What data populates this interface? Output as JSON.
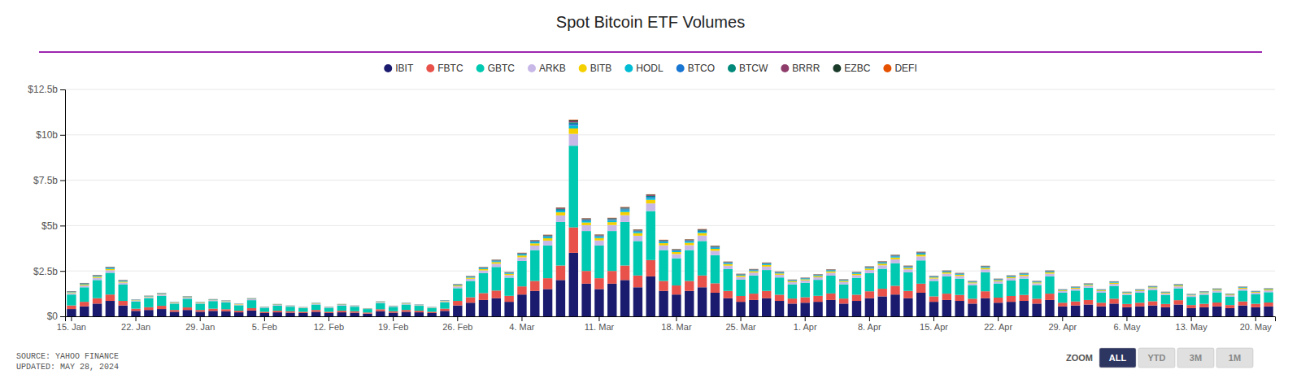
{
  "chart_data": {
    "type": "bar",
    "stacked": true,
    "grid": true,
    "legend": "top",
    "title": "Spot Bitcoin ETF Volumes",
    "annotations": [
      "SOURCE: YAHOO FINANCE",
      "UPDATED: MAY 28, 2024",
      "ZOOM",
      "ALL",
      "YTD",
      "3M",
      "1M"
    ],
    "categories": [
      "15. Jan",
      null,
      null,
      null,
      null,
      "22. Jan",
      null,
      null,
      null,
      null,
      "29. Jan",
      null,
      null,
      null,
      null,
      "5. Feb",
      null,
      null,
      null,
      null,
      "12. Feb",
      null,
      null,
      null,
      null,
      "19. Feb",
      null,
      null,
      null,
      null,
      "26. Feb",
      null,
      null,
      null,
      null,
      "4. Mar",
      null,
      null,
      null,
      null,
      null,
      "11. Mar",
      null,
      null,
      null,
      null,
      null,
      "18. Mar",
      null,
      null,
      null,
      null,
      "25. Mar",
      null,
      null,
      null,
      null,
      "1. Apr",
      null,
      null,
      null,
      null,
      "8. Apr",
      null,
      null,
      null,
      null,
      "15. Apr",
      null,
      null,
      null,
      null,
      "22. Apr",
      null,
      null,
      null,
      null,
      "29. Apr",
      null,
      null,
      null,
      null,
      "6. May",
      null,
      null,
      null,
      null,
      "13. May",
      null,
      null,
      null,
      null,
      "20. May",
      null
    ],
    "ylim": [
      0,
      12.5
    ],
    "yticks": [
      {
        "value": 0,
        "label": "$0"
      },
      {
        "value": 2.5,
        "label": "$2.5b"
      },
      {
        "value": 5.0,
        "label": "$5b"
      },
      {
        "value": 7.5,
        "label": "$7.5b"
      },
      {
        "value": 10.0,
        "label": "$10b"
      },
      {
        "value": 12.5,
        "label": "$12.5b"
      }
    ],
    "series": [
      {
        "name": "IBIT",
        "color": "#1a1a6e",
        "values": [
          0.4,
          0.55,
          0.7,
          0.85,
          0.6,
          0.3,
          0.35,
          0.4,
          0.25,
          0.35,
          0.25,
          0.3,
          0.28,
          0.22,
          0.32,
          0.18,
          0.22,
          0.2,
          0.18,
          0.25,
          0.18,
          0.22,
          0.2,
          0.15,
          0.28,
          0.2,
          0.25,
          0.22,
          0.18,
          0.3,
          0.6,
          0.75,
          0.9,
          1.0,
          0.8,
          1.2,
          1.4,
          1.5,
          2.0,
          3.5,
          1.8,
          1.5,
          1.8,
          2.0,
          1.6,
          2.2,
          1.4,
          1.2,
          1.4,
          1.6,
          1.3,
          1.0,
          0.8,
          0.9,
          1.0,
          0.85,
          0.7,
          0.75,
          0.8,
          0.9,
          0.7,
          0.85,
          1.0,
          1.1,
          1.2,
          1.0,
          1.3,
          0.8,
          0.9,
          0.85,
          0.7,
          1.0,
          0.75,
          0.8,
          0.85,
          0.7,
          0.9,
          0.55,
          0.6,
          0.65,
          0.55,
          0.7,
          0.5,
          0.55,
          0.6,
          0.5,
          0.65,
          0.45,
          0.5,
          0.55,
          0.45,
          0.6,
          0.5,
          0.55
        ]
      },
      {
        "name": "FBTC",
        "color": "#e8524a",
        "values": [
          0.2,
          0.25,
          0.3,
          0.35,
          0.25,
          0.12,
          0.15,
          0.18,
          0.1,
          0.14,
          0.1,
          0.12,
          0.11,
          0.09,
          0.13,
          0.07,
          0.09,
          0.08,
          0.07,
          0.1,
          0.07,
          0.09,
          0.08,
          0.06,
          0.11,
          0.08,
          0.1,
          0.09,
          0.07,
          0.12,
          0.25,
          0.3,
          0.38,
          0.42,
          0.33,
          0.45,
          0.55,
          0.6,
          0.8,
          1.4,
          0.7,
          0.6,
          0.7,
          0.8,
          0.65,
          0.9,
          0.55,
          0.5,
          0.55,
          0.65,
          0.52,
          0.4,
          0.32,
          0.35,
          0.4,
          0.34,
          0.28,
          0.3,
          0.33,
          0.36,
          0.28,
          0.34,
          0.38,
          0.42,
          0.48,
          0.4,
          0.5,
          0.3,
          0.35,
          0.33,
          0.27,
          0.38,
          0.28,
          0.32,
          0.33,
          0.27,
          0.35,
          0.2,
          0.22,
          0.25,
          0.2,
          0.27,
          0.18,
          0.2,
          0.23,
          0.18,
          0.24,
          0.17,
          0.19,
          0.21,
          0.17,
          0.22,
          0.19,
          0.21
        ]
      },
      {
        "name": "GBTC",
        "color": "#00c9b1",
        "values": [
          0.6,
          0.8,
          1.0,
          1.2,
          0.9,
          0.4,
          0.5,
          0.55,
          0.35,
          0.48,
          0.35,
          0.42,
          0.38,
          0.3,
          0.44,
          0.22,
          0.28,
          0.25,
          0.2,
          0.3,
          0.22,
          0.28,
          0.25,
          0.19,
          0.34,
          0.24,
          0.3,
          0.27,
          0.21,
          0.36,
          0.7,
          0.9,
          1.1,
          1.3,
          1.0,
          1.4,
          1.7,
          1.8,
          2.4,
          4.5,
          2.2,
          1.8,
          2.2,
          2.4,
          1.9,
          2.7,
          1.7,
          1.5,
          1.7,
          1.9,
          1.55,
          1.2,
          0.9,
          1.0,
          1.15,
          0.95,
          0.78,
          0.8,
          0.88,
          0.98,
          0.78,
          0.93,
          1.0,
          1.1,
          1.25,
          1.02,
          1.28,
          0.85,
          0.95,
          0.9,
          0.74,
          1.05,
          0.78,
          0.85,
          0.9,
          0.74,
          0.95,
          0.55,
          0.6,
          0.68,
          0.55,
          0.7,
          0.5,
          0.55,
          0.62,
          0.5,
          0.65,
          0.45,
          0.5,
          0.56,
          0.46,
          0.6,
          0.52,
          0.57
        ]
      },
      {
        "name": "ARKB",
        "color": "#c8b8e8",
        "values": [
          0.08,
          0.1,
          0.12,
          0.14,
          0.11,
          0.05,
          0.06,
          0.07,
          0.04,
          0.06,
          0.04,
          0.05,
          0.05,
          0.04,
          0.05,
          0.03,
          0.04,
          0.03,
          0.03,
          0.04,
          0.03,
          0.04,
          0.03,
          0.02,
          0.04,
          0.03,
          0.04,
          0.03,
          0.02,
          0.05,
          0.1,
          0.12,
          0.15,
          0.18,
          0.14,
          0.2,
          0.25,
          0.27,
          0.36,
          0.65,
          0.32,
          0.28,
          0.33,
          0.37,
          0.29,
          0.42,
          0.26,
          0.23,
          0.27,
          0.3,
          0.24,
          0.19,
          0.15,
          0.16,
          0.19,
          0.15,
          0.12,
          0.13,
          0.14,
          0.16,
          0.13,
          0.15,
          0.17,
          0.19,
          0.21,
          0.17,
          0.22,
          0.13,
          0.15,
          0.14,
          0.11,
          0.16,
          0.12,
          0.13,
          0.14,
          0.11,
          0.15,
          0.09,
          0.1,
          0.11,
          0.09,
          0.12,
          0.08,
          0.09,
          0.1,
          0.08,
          0.11,
          0.08,
          0.09,
          0.1,
          0.08,
          0.1,
          0.09,
          0.1
        ]
      },
      {
        "name": "BITB",
        "color": "#f5d000",
        "values": [
          0.04,
          0.05,
          0.06,
          0.07,
          0.05,
          0.02,
          0.03,
          0.03,
          0.02,
          0.03,
          0.02,
          0.02,
          0.02,
          0.02,
          0.02,
          0.01,
          0.02,
          0.01,
          0.01,
          0.02,
          0.01,
          0.02,
          0.01,
          0.01,
          0.02,
          0.01,
          0.02,
          0.01,
          0.01,
          0.02,
          0.05,
          0.06,
          0.07,
          0.09,
          0.07,
          0.1,
          0.12,
          0.13,
          0.17,
          0.3,
          0.15,
          0.13,
          0.16,
          0.18,
          0.14,
          0.2,
          0.12,
          0.11,
          0.13,
          0.14,
          0.11,
          0.09,
          0.07,
          0.08,
          0.09,
          0.07,
          0.06,
          0.06,
          0.07,
          0.08,
          0.06,
          0.07,
          0.08,
          0.09,
          0.1,
          0.08,
          0.1,
          0.06,
          0.07,
          0.07,
          0.05,
          0.08,
          0.06,
          0.06,
          0.07,
          0.05,
          0.07,
          0.04,
          0.05,
          0.05,
          0.04,
          0.06,
          0.04,
          0.04,
          0.05,
          0.04,
          0.05,
          0.03,
          0.04,
          0.05,
          0.04,
          0.05,
          0.04,
          0.05
        ]
      },
      {
        "name": "HODL",
        "color": "#00bcd4",
        "values": [
          0.02,
          0.03,
          0.03,
          0.04,
          0.03,
          0.01,
          0.015,
          0.015,
          0.01,
          0.015,
          0.01,
          0.012,
          0.011,
          0.009,
          0.012,
          0.008,
          0.01,
          0.009,
          0.007,
          0.01,
          0.008,
          0.01,
          0.009,
          0.007,
          0.011,
          0.009,
          0.011,
          0.01,
          0.008,
          0.013,
          0.025,
          0.03,
          0.038,
          0.042,
          0.033,
          0.05,
          0.06,
          0.065,
          0.09,
          0.16,
          0.08,
          0.065,
          0.08,
          0.09,
          0.07,
          0.1,
          0.06,
          0.055,
          0.065,
          0.07,
          0.057,
          0.044,
          0.034,
          0.038,
          0.044,
          0.035,
          0.028,
          0.03,
          0.033,
          0.037,
          0.03,
          0.036,
          0.04,
          0.044,
          0.05,
          0.04,
          0.052,
          0.03,
          0.035,
          0.033,
          0.026,
          0.038,
          0.028,
          0.032,
          0.033,
          0.027,
          0.035,
          0.02,
          0.022,
          0.025,
          0.02,
          0.027,
          0.018,
          0.02,
          0.023,
          0.018,
          0.024,
          0.017,
          0.019,
          0.021,
          0.017,
          0.022,
          0.019,
          0.021
        ]
      },
      {
        "name": "BTCO",
        "color": "#1976d2",
        "values": [
          0.015,
          0.018,
          0.022,
          0.025,
          0.02,
          0.008,
          0.01,
          0.011,
          0.007,
          0.009,
          0.007,
          0.008,
          0.007,
          0.006,
          0.008,
          0.005,
          0.006,
          0.005,
          0.004,
          0.006,
          0.005,
          0.006,
          0.005,
          0.004,
          0.007,
          0.005,
          0.007,
          0.006,
          0.005,
          0.008,
          0.016,
          0.02,
          0.025,
          0.028,
          0.022,
          0.032,
          0.038,
          0.041,
          0.055,
          0.1,
          0.05,
          0.042,
          0.05,
          0.057,
          0.044,
          0.064,
          0.04,
          0.035,
          0.041,
          0.046,
          0.037,
          0.029,
          0.022,
          0.025,
          0.028,
          0.023,
          0.018,
          0.019,
          0.021,
          0.024,
          0.019,
          0.023,
          0.026,
          0.028,
          0.032,
          0.026,
          0.033,
          0.019,
          0.022,
          0.021,
          0.017,
          0.024,
          0.018,
          0.02,
          0.021,
          0.017,
          0.022,
          0.013,
          0.014,
          0.016,
          0.013,
          0.017,
          0.012,
          0.013,
          0.015,
          0.012,
          0.015,
          0.011,
          0.012,
          0.013,
          0.011,
          0.014,
          0.012,
          0.013
        ]
      },
      {
        "name": "BTCW",
        "color": "#00897b",
        "values": [
          0.012,
          0.014,
          0.017,
          0.02,
          0.015,
          0.006,
          0.008,
          0.009,
          0.005,
          0.007,
          0.005,
          0.007,
          0.006,
          0.005,
          0.007,
          0.004,
          0.005,
          0.004,
          0.003,
          0.005,
          0.004,
          0.005,
          0.004,
          0.003,
          0.006,
          0.004,
          0.005,
          0.005,
          0.004,
          0.006,
          0.013,
          0.016,
          0.02,
          0.022,
          0.017,
          0.026,
          0.03,
          0.033,
          0.044,
          0.08,
          0.04,
          0.033,
          0.04,
          0.046,
          0.035,
          0.051,
          0.032,
          0.028,
          0.033,
          0.037,
          0.03,
          0.023,
          0.018,
          0.02,
          0.023,
          0.018,
          0.015,
          0.016,
          0.017,
          0.019,
          0.015,
          0.018,
          0.021,
          0.023,
          0.026,
          0.021,
          0.026,
          0.015,
          0.018,
          0.017,
          0.013,
          0.02,
          0.014,
          0.016,
          0.017,
          0.013,
          0.018,
          0.01,
          0.012,
          0.013,
          0.01,
          0.013,
          0.009,
          0.01,
          0.012,
          0.009,
          0.012,
          0.009,
          0.01,
          0.011,
          0.009,
          0.011,
          0.01,
          0.011
        ]
      },
      {
        "name": "BRRR",
        "color": "#8e3d6b",
        "values": [
          0.01,
          0.012,
          0.014,
          0.016,
          0.012,
          0.005,
          0.006,
          0.007,
          0.004,
          0.006,
          0.004,
          0.005,
          0.005,
          0.004,
          0.005,
          0.003,
          0.004,
          0.003,
          0.003,
          0.004,
          0.003,
          0.004,
          0.003,
          0.002,
          0.004,
          0.003,
          0.004,
          0.004,
          0.003,
          0.005,
          0.01,
          0.013,
          0.016,
          0.018,
          0.014,
          0.021,
          0.025,
          0.026,
          0.035,
          0.064,
          0.032,
          0.027,
          0.032,
          0.037,
          0.028,
          0.041,
          0.026,
          0.023,
          0.027,
          0.03,
          0.024,
          0.019,
          0.014,
          0.016,
          0.018,
          0.015,
          0.012,
          0.012,
          0.014,
          0.015,
          0.012,
          0.015,
          0.017,
          0.018,
          0.021,
          0.017,
          0.021,
          0.012,
          0.014,
          0.014,
          0.011,
          0.016,
          0.011,
          0.013,
          0.013,
          0.011,
          0.014,
          0.008,
          0.009,
          0.01,
          0.008,
          0.011,
          0.007,
          0.008,
          0.009,
          0.007,
          0.01,
          0.007,
          0.008,
          0.009,
          0.007,
          0.009,
          0.008,
          0.009
        ]
      },
      {
        "name": "EZBC",
        "color": "#1a3a2a",
        "values": [
          0.008,
          0.01,
          0.011,
          0.013,
          0.01,
          0.004,
          0.005,
          0.006,
          0.003,
          0.005,
          0.004,
          0.004,
          0.004,
          0.003,
          0.004,
          0.002,
          0.003,
          0.003,
          0.002,
          0.003,
          0.002,
          0.003,
          0.003,
          0.002,
          0.003,
          0.003,
          0.003,
          0.003,
          0.002,
          0.004,
          0.008,
          0.01,
          0.013,
          0.015,
          0.011,
          0.017,
          0.02,
          0.021,
          0.028,
          0.051,
          0.025,
          0.022,
          0.026,
          0.029,
          0.023,
          0.033,
          0.021,
          0.018,
          0.021,
          0.024,
          0.019,
          0.015,
          0.011,
          0.013,
          0.015,
          0.012,
          0.009,
          0.01,
          0.011,
          0.012,
          0.01,
          0.012,
          0.013,
          0.015,
          0.017,
          0.013,
          0.017,
          0.01,
          0.011,
          0.011,
          0.009,
          0.013,
          0.009,
          0.01,
          0.011,
          0.009,
          0.011,
          0.007,
          0.007,
          0.008,
          0.007,
          0.009,
          0.006,
          0.007,
          0.007,
          0.006,
          0.008,
          0.006,
          0.006,
          0.007,
          0.006,
          0.007,
          0.006,
          0.007
        ]
      },
      {
        "name": "DEFI",
        "color": "#e65100",
        "values": [
          0.004,
          0.005,
          0.006,
          0.007,
          0.005,
          0.002,
          0.002,
          0.003,
          0.002,
          0.002,
          0.002,
          0.002,
          0.002,
          0.001,
          0.002,
          0.001,
          0.001,
          0.001,
          0.001,
          0.002,
          0.001,
          0.002,
          0.001,
          0.001,
          0.002,
          0.001,
          0.002,
          0.001,
          0.001,
          0.002,
          0.004,
          0.005,
          0.006,
          0.007,
          0.006,
          0.008,
          0.01,
          0.011,
          0.014,
          0.026,
          0.013,
          0.011,
          0.013,
          0.015,
          0.011,
          0.016,
          0.01,
          0.009,
          0.011,
          0.012,
          0.01,
          0.007,
          0.006,
          0.006,
          0.007,
          0.006,
          0.005,
          0.005,
          0.005,
          0.006,
          0.005,
          0.006,
          0.007,
          0.007,
          0.008,
          0.007,
          0.008,
          0.005,
          0.006,
          0.005,
          0.004,
          0.006,
          0.004,
          0.005,
          0.005,
          0.004,
          0.006,
          0.003,
          0.004,
          0.004,
          0.003,
          0.004,
          0.003,
          0.003,
          0.004,
          0.003,
          0.004,
          0.003,
          0.003,
          0.003,
          0.003,
          0.004,
          0.003,
          0.004
        ]
      }
    ]
  }
}
